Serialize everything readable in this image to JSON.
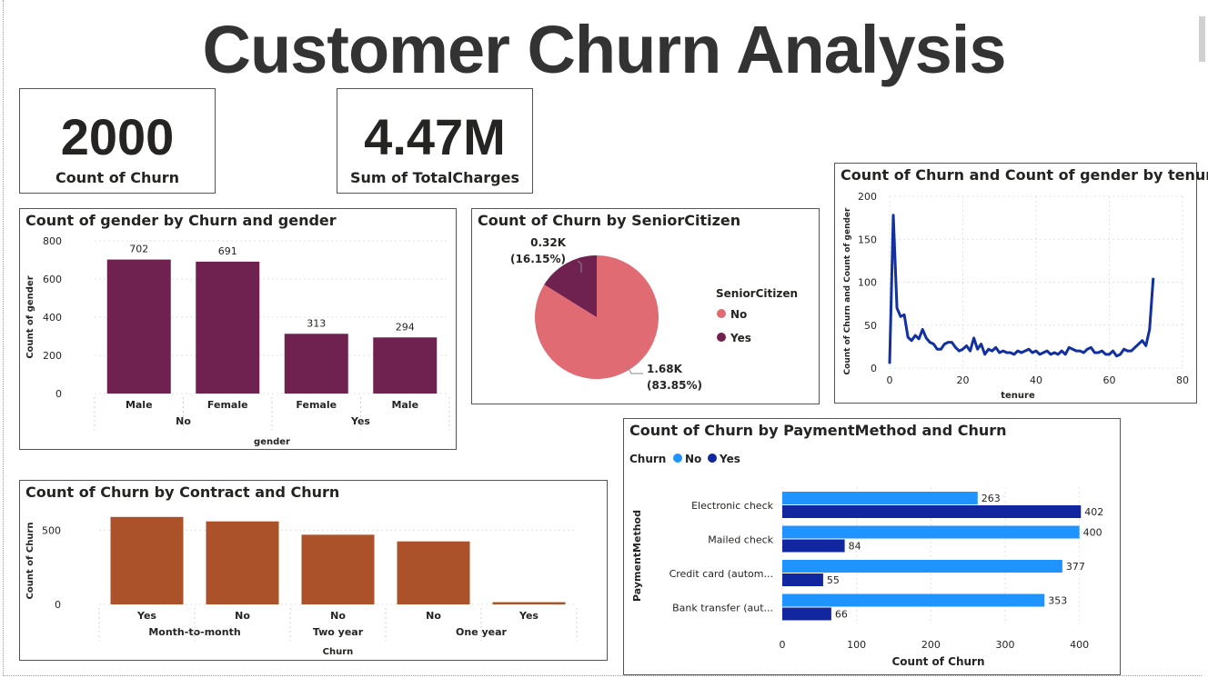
{
  "title": "Customer Churn Analysis",
  "kpis": [
    {
      "value": "2000",
      "label": "Count of Churn"
    },
    {
      "value": "4.47M",
      "label": "Sum of TotalCharges"
    }
  ],
  "colors": {
    "gender_bar": "#6f2150",
    "contract_bar": "#ab522a",
    "pie_no": "#e06b73",
    "pie_yes": "#6f2150",
    "line": "#1230a0",
    "pay_no": "#1f93ff",
    "pay_yes": "#1226a0"
  },
  "chart_data": [
    {
      "id": "gender",
      "type": "bar",
      "title": "Count of gender by Churn and gender",
      "xlabel": "gender",
      "ylabel": "Count of gender",
      "ylim": [
        0,
        800
      ],
      "yticks": [
        0,
        200,
        400,
        600,
        800
      ],
      "categories": [
        "Male",
        "Female",
        "Female",
        "Male"
      ],
      "groups": [
        {
          "label": "No",
          "span": [
            0,
            1
          ]
        },
        {
          "label": "Yes",
          "span": [
            2,
            3
          ]
        }
      ],
      "values": [
        702,
        691,
        313,
        294
      ],
      "data_labels": [
        "702",
        "691",
        "313",
        "294"
      ]
    },
    {
      "id": "senior",
      "type": "pie",
      "title": "Count of Churn by SeniorCitizen",
      "legend_title": "SeniorCitizen",
      "legend_position": "right",
      "slices": [
        {
          "label": "No",
          "value": 1.68,
          "percent": 83.85,
          "text": "1.68K",
          "pct_text": "(83.85%)"
        },
        {
          "label": "Yes",
          "value": 0.32,
          "percent": 16.15,
          "text": "0.32K",
          "pct_text": "(16.15%)"
        }
      ]
    },
    {
      "id": "tenure",
      "type": "line",
      "title": "Count of Churn and Count of gender by tenure",
      "xlabel": "tenure",
      "ylabel": "Count of Churn and Count of gender",
      "xlim": [
        0,
        80
      ],
      "ylim": [
        0,
        200
      ],
      "xticks": [
        0,
        20,
        40,
        60,
        80
      ],
      "yticks": [
        0,
        50,
        100,
        150,
        200
      ],
      "x": [
        0,
        1,
        2,
        3,
        4,
        5,
        6,
        7,
        8,
        9,
        10,
        11,
        12,
        13,
        14,
        15,
        16,
        17,
        18,
        19,
        20,
        21,
        22,
        23,
        24,
        25,
        26,
        27,
        28,
        29,
        30,
        31,
        32,
        33,
        34,
        35,
        36,
        37,
        38,
        39,
        40,
        41,
        42,
        43,
        44,
        45,
        46,
        47,
        48,
        49,
        50,
        51,
        52,
        53,
        54,
        55,
        56,
        57,
        58,
        59,
        60,
        61,
        62,
        63,
        64,
        65,
        66,
        67,
        68,
        69,
        70,
        71,
        72
      ],
      "y": [
        5,
        178,
        70,
        60,
        62,
        36,
        32,
        38,
        34,
        45,
        35,
        30,
        28,
        22,
        22,
        28,
        30,
        30,
        24,
        20,
        22,
        26,
        20,
        35,
        22,
        28,
        16,
        22,
        20,
        24,
        18,
        20,
        18,
        18,
        16,
        20,
        18,
        20,
        22,
        18,
        20,
        16,
        18,
        20,
        16,
        18,
        16,
        20,
        16,
        24,
        22,
        20,
        20,
        18,
        22,
        24,
        18,
        18,
        20,
        16,
        16,
        20,
        14,
        16,
        22,
        20,
        20,
        24,
        28,
        32,
        26,
        45,
        105
      ]
    },
    {
      "id": "contract",
      "type": "bar",
      "title": "Count of Churn by Contract and Churn",
      "xlabel": "Churn",
      "ylabel": "Count of Churn",
      "ylim": [
        0,
        650
      ],
      "yticks": [
        0,
        500
      ],
      "categories": [
        "Yes",
        "No",
        "No",
        "No",
        "Yes"
      ],
      "groups": [
        {
          "label": "Month-to-month",
          "span": [
            0,
            1
          ]
        },
        {
          "label": "Two year",
          "span": [
            2,
            2
          ]
        },
        {
          "label": "One year",
          "span": [
            3,
            4
          ]
        }
      ],
      "values": [
        590,
        560,
        470,
        425,
        15
      ]
    },
    {
      "id": "payment",
      "type": "bar",
      "orientation": "horizontal",
      "title": "Count of Churn by PaymentMethod and Churn",
      "legend_title": "Churn",
      "legend_position": "top-left",
      "xlabel": "Count of Churn",
      "ylabel": "PaymentMethod",
      "xlim": [
        0,
        420
      ],
      "xticks": [
        0,
        100,
        200,
        300,
        400
      ],
      "categories": [
        "Electronic check",
        "Mailed check",
        "Credit card (autom...",
        "Bank transfer (aut..."
      ],
      "series": [
        {
          "name": "No",
          "values": [
            263,
            400,
            377,
            353
          ]
        },
        {
          "name": "Yes",
          "values": [
            402,
            84,
            55,
            66
          ]
        }
      ]
    }
  ]
}
